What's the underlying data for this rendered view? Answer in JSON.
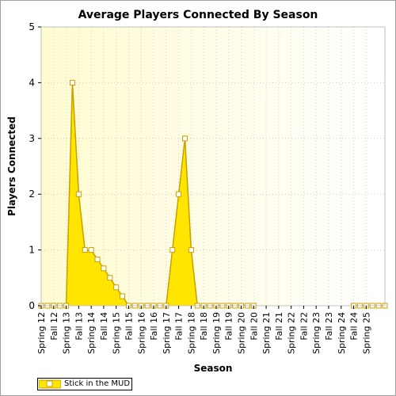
{
  "chart_data": {
    "type": "area",
    "title": "Average Players Connected By Season",
    "xlabel": "Season",
    "ylabel": "Players Connected",
    "ylim": [
      0,
      5
    ],
    "yticks": [
      0,
      1,
      2,
      3,
      4,
      5
    ],
    "grid": true,
    "legend_position": "bottom-left",
    "categories": [
      "Spring 12",
      "Fall 12",
      "Spring 13",
      "Fall 13",
      "Spring 14",
      "Fall 14",
      "Spring 15",
      "Fall 15",
      "Spring 16",
      "Fall 16",
      "Spring 17",
      "Fall 17",
      "Spring 18",
      "Fall 18",
      "Spring 19",
      "Fall 19",
      "Spring 20",
      "Fall 20",
      "Spring 21",
      "Fall 21",
      "Spring 22",
      "Fall 22",
      "Spring 23",
      "Fall 23",
      "Spring 24",
      "Fall 24",
      "Spring 25"
    ],
    "x": [
      12.0,
      12.25,
      12.5,
      12.75,
      13.0,
      13.25,
      13.5,
      13.75,
      14.0,
      14.25,
      14.5,
      14.75,
      15.0,
      15.25,
      15.5,
      15.75,
      16.0,
      16.25,
      16.5,
      16.75,
      17.0,
      17.25,
      17.5,
      17.75,
      18.0,
      18.25,
      18.5,
      18.75,
      19.0,
      19.25,
      19.5,
      19.75,
      20.0,
      20.25,
      20.5,
      24.5,
      24.75,
      25.0,
      25.25,
      25.5,
      25.75
    ],
    "series": [
      {
        "name": "Stick in the MUD",
        "values": [
          0,
          0,
          0,
          0,
          0,
          4,
          2,
          1,
          1,
          0.83,
          0.67,
          0.5,
          0.33,
          0.17,
          0,
          0,
          0,
          0,
          0,
          0,
          0,
          1,
          2,
          3,
          1,
          0,
          0,
          0,
          0,
          0,
          0,
          0,
          0,
          0,
          0,
          0,
          0,
          0,
          0,
          0,
          0
        ]
      }
    ]
  },
  "colors": {
    "fill": "#ffe500",
    "line": "#c8a000",
    "plot_bg": "#ffffe0",
    "grid": "#cfcfcf"
  }
}
